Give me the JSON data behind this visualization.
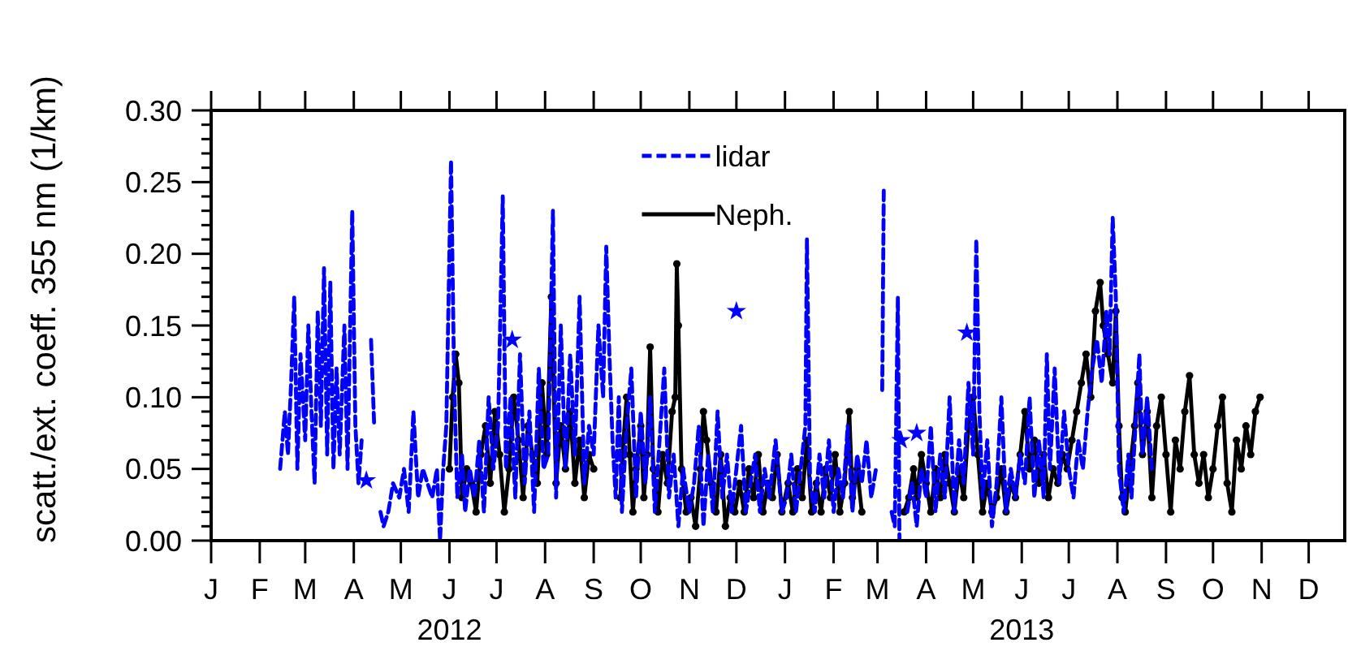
{
  "chart_data": {
    "type": "line",
    "ylabel": "scatt./ext. coeff. 355 nm (1/km)",
    "legend": "top",
    "xlim": [
      "2012-01-01",
      "2013-12-24"
    ],
    "ylim": [
      0,
      0.3
    ],
    "xticks": [
      {
        "value": "2012-01-01",
        "label": "J"
      },
      {
        "value": "2012-02-01",
        "label": "F"
      },
      {
        "value": "2012-03-01",
        "label": "M"
      },
      {
        "value": "2012-04-01",
        "label": "A"
      },
      {
        "value": "2012-05-01",
        "label": "M"
      },
      {
        "value": "2012-06-01",
        "label": "J\n2012"
      },
      {
        "value": "2012-07-01",
        "label": "J"
      },
      {
        "value": "2012-08-01",
        "label": "A"
      },
      {
        "value": "2012-09-01",
        "label": "S"
      },
      {
        "value": "2012-10-01",
        "label": "O"
      },
      {
        "value": "2012-11-01",
        "label": "N"
      },
      {
        "value": "2012-12-01",
        "label": "D"
      },
      {
        "value": "2013-01-01",
        "label": "J"
      },
      {
        "value": "2013-02-01",
        "label": "F"
      },
      {
        "value": "2013-03-01",
        "label": "M"
      },
      {
        "value": "2013-04-01",
        "label": "A"
      },
      {
        "value": "2013-05-01",
        "label": "M"
      },
      {
        "value": "2013-06-01",
        "label": "J\n2013"
      },
      {
        "value": "2013-07-01",
        "label": "J"
      },
      {
        "value": "2013-08-01",
        "label": "A"
      },
      {
        "value": "2013-09-01",
        "label": "S"
      },
      {
        "value": "2013-10-01",
        "label": "O"
      },
      {
        "value": "2013-11-01",
        "label": "N"
      },
      {
        "value": "2013-12-01",
        "label": "D"
      }
    ],
    "yticks": [
      {
        "value": 0,
        "label": "0.00"
      },
      {
        "value": 0.01,
        "label": null
      },
      {
        "value": 0.02,
        "label": null
      },
      {
        "value": 0.03,
        "label": null
      },
      {
        "value": 0.04,
        "label": null
      },
      {
        "value": 0.05,
        "label": "0.05"
      },
      {
        "value": 0.06,
        "label": null
      },
      {
        "value": 0.07,
        "label": null
      },
      {
        "value": 0.08,
        "label": null
      },
      {
        "value": 0.09,
        "label": null
      },
      {
        "value": 0.1,
        "label": "0.10"
      },
      {
        "value": 0.11,
        "label": null
      },
      {
        "value": 0.12,
        "label": null
      },
      {
        "value": 0.13,
        "label": null
      },
      {
        "value": 0.14,
        "label": null
      },
      {
        "value": 0.15,
        "label": "0.15"
      },
      {
        "value": 0.16,
        "label": null
      },
      {
        "value": 0.17,
        "label": null
      },
      {
        "value": 0.18,
        "label": null
      },
      {
        "value": 0.19,
        "label": null
      },
      {
        "value": 0.2,
        "label": "0.20"
      },
      {
        "value": 0.21,
        "label": null
      },
      {
        "value": 0.22,
        "label": null
      },
      {
        "value": 0.23,
        "label": null
      },
      {
        "value": 0.24,
        "label": null
      },
      {
        "value": 0.25,
        "label": "0.25"
      },
      {
        "value": 0.26,
        "label": null
      },
      {
        "value": 0.27,
        "label": null
      },
      {
        "value": 0.28,
        "label": null
      },
      {
        "value": 0.29,
        "label": null
      },
      {
        "value": 0.3,
        "label": "0.30"
      }
    ],
    "series": [
      {
        "name": "lidar",
        "color": "#0000ff",
        "line_style": "dashed",
        "marker": "none",
        "x": [
          "2012-02-14",
          "2012-02-17",
          "2012-02-19",
          "2012-02-21",
          "2012-02-23",
          "2012-02-25",
          "2012-02-27",
          "2012-03-01",
          "2012-03-03",
          "2012-03-05",
          "2012-03-07",
          "2012-03-09",
          "2012-03-11",
          "2012-03-13",
          "2012-03-15",
          "2012-03-17",
          "2012-03-19",
          "2012-03-21",
          "2012-03-23",
          "2012-03-26",
          "2012-03-28",
          "2012-03-31",
          "2012-04-02",
          "2012-04-04",
          "2012-04-06",
          "2012-04-08",
          "2012-04-12",
          "2012-04-14",
          "2012-04-16",
          "2012-04-18",
          "2012-04-20",
          "2012-04-23",
          "2012-04-26",
          "2012-04-30",
          "2012-05-03",
          "2012-05-06",
          "2012-05-09",
          "2012-05-12",
          "2012-05-15",
          "2012-05-18",
          "2012-05-21",
          "2012-05-24",
          "2012-05-26",
          "2012-05-28",
          "2012-05-30",
          "2012-06-02",
          "2012-06-04",
          "2012-06-06",
          "2012-06-09",
          "2012-06-11",
          "2012-06-14",
          "2012-06-17",
          "2012-06-20",
          "2012-06-23",
          "2012-06-26",
          "2012-06-29",
          "2012-07-02",
          "2012-07-05",
          "2012-07-07",
          "2012-07-10",
          "2012-07-13",
          "2012-07-16",
          "2012-07-19",
          "2012-07-22",
          "2012-07-25",
          "2012-07-28",
          "2012-07-31",
          "2012-08-03",
          "2012-08-06",
          "2012-08-08",
          "2012-08-11",
          "2012-08-14",
          "2012-08-17",
          "2012-08-20",
          "2012-08-23",
          "2012-08-26",
          "2012-08-29",
          "2012-09-01",
          "2012-09-04",
          "2012-09-07",
          "2012-09-09",
          "2012-09-11",
          "2012-09-13",
          "2012-09-15",
          "2012-09-17",
          "2012-09-19",
          "2012-09-22",
          "2012-09-25",
          "2012-09-28",
          "2012-10-01",
          "2012-10-04",
          "2012-10-07",
          "2012-10-10",
          "2012-10-13",
          "2012-10-16",
          "2012-10-19",
          "2012-10-22",
          "2012-10-25",
          "2012-10-28",
          "2012-11-01",
          "2012-11-04",
          "2012-11-07",
          "2012-11-10",
          "2012-11-13",
          "2012-11-16",
          "2012-11-19",
          "2012-11-22",
          "2012-11-25",
          "2012-11-28",
          "2012-12-01",
          "2012-12-04",
          "2012-12-07",
          "2012-12-10",
          "2012-12-13",
          "2012-12-16",
          "2012-12-19",
          "2012-12-22",
          "2012-12-26",
          "2012-12-30",
          "2013-01-02",
          "2013-01-05",
          "2013-01-08",
          "2013-01-11",
          "2013-01-14",
          "2013-01-15",
          "2013-01-17",
          "2013-01-20",
          "2013-01-23",
          "2013-01-26",
          "2013-01-29",
          "2013-02-01",
          "2013-02-04",
          "2013-02-07",
          "2013-02-10",
          "2013-02-13",
          "2013-02-16",
          "2013-02-19",
          "2013-02-22",
          "2013-02-25",
          "2013-02-28",
          "2013-03-02",
          "2013-03-04",
          "2013-03-05",
          "2013-03-07",
          "2013-03-10",
          "2013-03-12",
          "2013-03-14",
          "2013-03-15",
          "2013-03-17",
          "2013-03-20",
          "2013-03-23",
          "2013-03-26",
          "2013-03-29",
          "2013-04-01",
          "2013-04-04",
          "2013-04-07",
          "2013-04-10",
          "2013-04-13",
          "2013-04-16",
          "2013-04-19",
          "2013-04-22",
          "2013-04-25",
          "2013-04-28",
          "2013-05-01",
          "2013-05-03",
          "2013-05-05",
          "2013-05-07",
          "2013-05-10",
          "2013-05-13",
          "2013-05-16",
          "2013-05-19",
          "2013-05-22",
          "2013-05-25",
          "2013-05-28",
          "2013-05-31",
          "2013-06-03",
          "2013-06-06",
          "2013-06-09",
          "2013-06-12",
          "2013-06-15",
          "2013-06-17",
          "2013-06-19",
          "2013-06-22",
          "2013-06-25",
          "2013-06-28",
          "2013-07-01",
          "2013-07-04",
          "2013-07-07",
          "2013-07-10",
          "2013-07-13",
          "2013-07-16",
          "2013-07-19",
          "2013-07-22",
          "2013-07-25",
          "2013-07-27",
          "2013-07-29",
          "2013-07-31",
          "2013-08-02",
          "2013-08-05",
          "2013-08-08",
          "2013-08-10",
          "2013-08-13",
          "2013-08-15",
          "2013-08-17",
          "2013-08-20",
          "2013-08-23"
        ],
        "values": [
          0.05,
          0.09,
          0.06,
          0.11,
          0.17,
          0.05,
          0.13,
          0.07,
          0.15,
          0.09,
          0.04,
          0.16,
          0.08,
          0.19,
          0.06,
          0.18,
          0.05,
          0.12,
          0.06,
          0.15,
          0.05,
          0.23,
          0.08,
          0.04,
          0.07,
          null,
          0.14,
          0.08,
          null,
          0.02,
          0.01,
          0.02,
          0.04,
          0.03,
          0.05,
          0.02,
          0.09,
          0.03,
          0.05,
          0.04,
          0.03,
          0.05,
          0.0,
          0.05,
          0.08,
          0.265,
          0.11,
          0.03,
          0.06,
          0.02,
          0.05,
          0.03,
          0.07,
          0.02,
          0.1,
          0.05,
          0.08,
          0.24,
          0.05,
          0.1,
          0.03,
          0.13,
          0.04,
          0.09,
          0.02,
          0.12,
          0.05,
          0.06,
          0.23,
          0.03,
          0.15,
          0.05,
          0.13,
          0.06,
          0.17,
          0.04,
          0.08,
          0.06,
          0.15,
          0.1,
          0.205,
          0.13,
          0.07,
          0.03,
          0.1,
          0.02,
          0.08,
          0.12,
          0.03,
          0.09,
          0.04,
          0.1,
          0.02,
          0.07,
          0.12,
          0.03,
          0.06,
          0.01,
          0.05,
          0.02,
          0.04,
          0.08,
          0.01,
          0.06,
          0.02,
          0.09,
          0.03,
          0.06,
          0.02,
          0.05,
          0.08,
          0.02,
          0.04,
          0.06,
          0.02,
          0.05,
          0.03,
          0.07,
          0.02,
          0.03,
          0.06,
          0.02,
          0.05,
          0.08,
          0.21,
          0.04,
          0.02,
          0.06,
          0.03,
          0.07,
          0.02,
          0.05,
          0.03,
          0.08,
          0.02,
          0.06,
          0.04,
          0.07,
          0.03,
          0.05,
          null,
          0.105,
          0.245,
          null,
          0.02,
          0.01,
          0.17,
          0.0,
          null,
          0.02,
          0.04,
          0.01,
          0.05,
          0.03,
          0.08,
          0.02,
          0.06,
          0.03,
          0.1,
          0.02,
          0.07,
          0.04,
          0.11,
          0.06,
          0.21,
          0.09,
          0.03,
          0.07,
          0.01,
          0.04,
          0.1,
          0.02,
          0.05,
          0.03,
          0.06,
          0.04,
          0.1,
          0.03,
          0.07,
          0.03,
          0.13,
          0.05,
          0.12,
          0.04,
          0.09,
          0.05,
          0.03,
          0.07,
          0.05,
          0.09,
          0.12,
          0.14,
          0.11,
          0.16,
          0.13,
          0.225,
          0.17,
          0.05,
          0.02,
          0.06,
          0.03,
          0.09,
          0.13,
          0.06,
          0.1,
          0.05
        ]
      },
      {
        "type": "scatter",
        "color": "#0000ff",
        "marker": "star",
        "x": [
          "2012-04-09",
          "2012-07-11",
          "2012-12-01",
          "2013-03-16",
          "2013-03-26",
          "2013-04-27"
        ],
        "values": [
          0.042,
          0.14,
          0.16,
          0.07,
          0.075,
          0.145
        ]
      },
      {
        "name": "Neph.",
        "color": "#000000",
        "line_style": "solid",
        "marker": "circle",
        "x": [
          "2012-06-01",
          "2012-06-03",
          "2012-06-05",
          "2012-06-07",
          "2012-06-09",
          "2012-06-12",
          "2012-06-15",
          "2012-06-18",
          "2012-06-21",
          "2012-06-24",
          "2012-06-27",
          "2012-06-30",
          "2012-07-03",
          "2012-07-06",
          "2012-07-09",
          "2012-07-12",
          "2012-07-15",
          "2012-07-18",
          "2012-07-21",
          "2012-07-24",
          "2012-07-27",
          "2012-07-30",
          "2012-08-02",
          "2012-08-05",
          "2012-08-08",
          "2012-08-11",
          "2012-08-14",
          "2012-08-17",
          "2012-08-20",
          "2012-08-23",
          "2012-08-26",
          "2012-08-29",
          "2012-09-01",
          "2012-09-10",
          "2012-09-18",
          "2012-09-20",
          "2012-09-22",
          "2012-09-24",
          "2012-09-26",
          "2012-09-28",
          "2012-10-01",
          "2012-10-03",
          "2012-10-05",
          "2012-10-07",
          "2012-10-09",
          "2012-10-12",
          "2012-10-15",
          "2012-10-18",
          "2012-10-21",
          "2012-10-23",
          "2012-10-24",
          "2012-10-25",
          "2012-10-27",
          "2012-10-30",
          "2012-11-02",
          "2012-11-05",
          "2012-11-08",
          "2012-11-10",
          "2012-11-12",
          "2012-11-15",
          "2012-11-18",
          "2012-11-21",
          "2012-11-24",
          "2012-11-27",
          "2012-11-30",
          "2012-12-03",
          "2012-12-06",
          "2012-12-09",
          "2012-12-12",
          "2012-12-15",
          "2012-12-18",
          "2012-12-21",
          "2012-12-24",
          "2012-12-27",
          "2012-12-30",
          "2013-01-03",
          "2013-01-06",
          "2013-01-09",
          "2013-01-12",
          "2013-01-15",
          "2013-01-18",
          "2013-01-21",
          "2013-01-24",
          "2013-01-27",
          "2013-01-30",
          "2013-02-02",
          "2013-02-05",
          "2013-02-08",
          "2013-02-11",
          "2013-02-13",
          "2013-02-16",
          "2013-02-19",
          "2013-03-05",
          "2013-03-18",
          "2013-03-21",
          "2013-03-24",
          "2013-03-26",
          "2013-03-29",
          "2013-04-01",
          "2013-04-04",
          "2013-04-07",
          "2013-04-10",
          "2013-04-13",
          "2013-04-16",
          "2013-04-19",
          "2013-04-22",
          "2013-04-25",
          "2013-04-28",
          "2013-05-01",
          "2013-05-04",
          "2013-05-07",
          "2013-05-10",
          "2013-05-13",
          "2013-05-16",
          "2013-05-19",
          "2013-05-22",
          "2013-05-25",
          "2013-05-28",
          "2013-05-31",
          "2013-06-03",
          "2013-06-06",
          "2013-06-09",
          "2013-06-12",
          "2013-06-15",
          "2013-06-18",
          "2013-06-21",
          "2013-06-24",
          "2013-06-27",
          "2013-06-30",
          "2013-07-03",
          "2013-07-06",
          "2013-07-09",
          "2013-07-12",
          "2013-07-15",
          "2013-07-18",
          "2013-07-21",
          "2013-07-23",
          "2013-07-26",
          "2013-07-29",
          "2013-07-31",
          "2013-08-02",
          "2013-08-04",
          "2013-08-06",
          "2013-08-09",
          "2013-08-12",
          "2013-08-14",
          "2013-08-17",
          "2013-08-20",
          "2013-08-23",
          "2013-08-26",
          "2013-08-29",
          "2013-09-01",
          "2013-09-04",
          "2013-09-07",
          "2013-09-10",
          "2013-09-13",
          "2013-09-16",
          "2013-09-19",
          "2013-09-22",
          "2013-09-25",
          "2013-09-28",
          "2013-10-01",
          "2013-10-04",
          "2013-10-07",
          "2013-10-10",
          "2013-10-13",
          "2013-10-16",
          "2013-10-19",
          "2013-10-22",
          "2013-10-25",
          "2013-10-28",
          "2013-10-31"
        ],
        "values": [
          0.05,
          0.1,
          0.13,
          0.11,
          0.03,
          0.05,
          0.04,
          0.02,
          0.06,
          0.08,
          0.04,
          0.09,
          0.06,
          0.02,
          0.05,
          0.1,
          0.07,
          0.03,
          0.08,
          0.06,
          0.04,
          0.11,
          0.06,
          0.17,
          0.04,
          0.08,
          0.05,
          0.09,
          0.04,
          0.07,
          0.03,
          0.06,
          0.05,
          null,
          0.03,
          0.07,
          0.1,
          0.06,
          0.02,
          0.05,
          0.08,
          0.03,
          0.06,
          0.135,
          0.05,
          0.02,
          0.06,
          0.04,
          0.09,
          0.1,
          0.193,
          0.15,
          0.05,
          0.02,
          0.03,
          0.01,
          0.05,
          0.09,
          0.07,
          0.04,
          0.02,
          0.06,
          0.01,
          0.03,
          0.02,
          0.04,
          0.02,
          0.05,
          0.03,
          0.06,
          0.02,
          0.04,
          0.03,
          0.06,
          0.02,
          0.04,
          0.02,
          0.05,
          0.03,
          0.07,
          0.02,
          0.04,
          0.02,
          0.05,
          0.03,
          0.06,
          0.02,
          0.04,
          0.09,
          0.03,
          0.05,
          0.02,
          null,
          0.02,
          0.03,
          0.05,
          0.03,
          0.06,
          0.04,
          0.02,
          0.05,
          0.03,
          0.06,
          0.04,
          0.02,
          0.05,
          0.03,
          0.08,
          0.1,
          0.06,
          0.02,
          0.04,
          0.02,
          0.03,
          0.05,
          0.02,
          0.04,
          0.03,
          0.06,
          0.09,
          0.05,
          0.07,
          0.04,
          0.06,
          0.03,
          0.05,
          0.04,
          0.06,
          0.05,
          0.07,
          0.09,
          0.11,
          0.13,
          0.1,
          0.16,
          0.18,
          0.15,
          0.13,
          0.11,
          0.16,
          0.08,
          0.03,
          0.02,
          0.05,
          0.08,
          0.11,
          0.06,
          0.09,
          0.03,
          0.08,
          0.1,
          0.06,
          0.02,
          0.07,
          0.05,
          0.09,
          0.115,
          0.06,
          0.04,
          0.06,
          0.03,
          0.05,
          0.08,
          0.1,
          0.04,
          0.02,
          0.07,
          0.05,
          0.08,
          0.06,
          0.09,
          0.1
        ]
      }
    ]
  }
}
